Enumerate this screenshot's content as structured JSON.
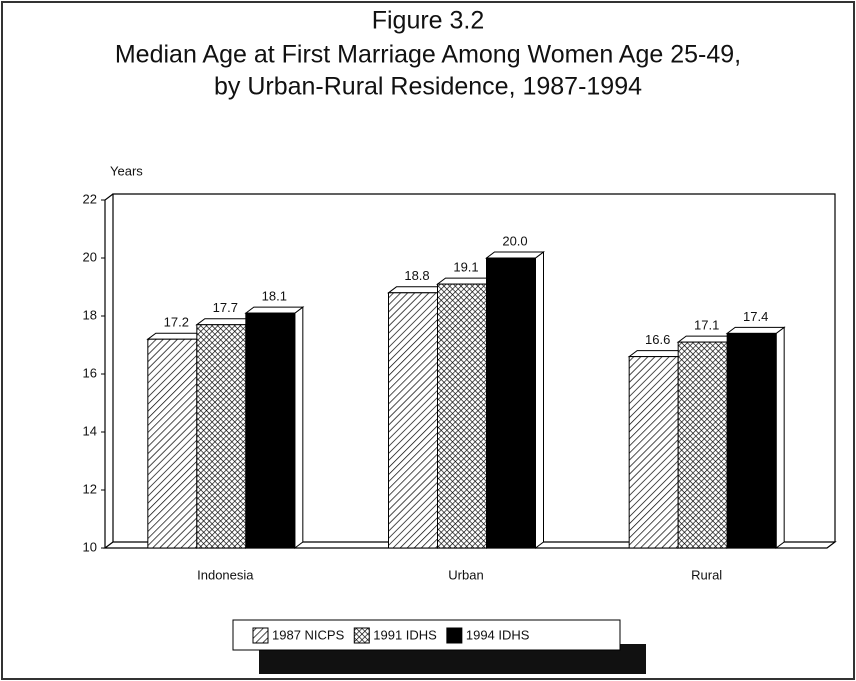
{
  "chart_data": {
    "type": "bar",
    "title": [
      "Figure 3.2",
      "Median Age at First Marriage Among Women Age 25-49,",
      "by Urban-Rural Residence, 1987-1994"
    ],
    "y_label": "Years",
    "categories": [
      "Indonesia",
      "Urban",
      "Rural"
    ],
    "series": [
      {
        "name": "1987 NICPS",
        "color": "#000000",
        "pattern": "diagonal",
        "values": [
          17.2,
          18.8,
          16.6
        ]
      },
      {
        "name": "1991 IDHS",
        "color": "#000000",
        "pattern": "crosshatch",
        "values": [
          17.7,
          19.1,
          17.1
        ]
      },
      {
        "name": "1994 IDHS",
        "color": "#000000",
        "pattern": "solid",
        "values": [
          18.1,
          20.0,
          17.4
        ],
        "value_labels": [
          "18.1",
          "20.0",
          "17.4"
        ]
      }
    ],
    "ylim": [
      10,
      22
    ],
    "yticks": [
      10,
      12,
      14,
      16,
      18,
      20,
      22
    ],
    "grid": false,
    "legend": "bottom"
  }
}
